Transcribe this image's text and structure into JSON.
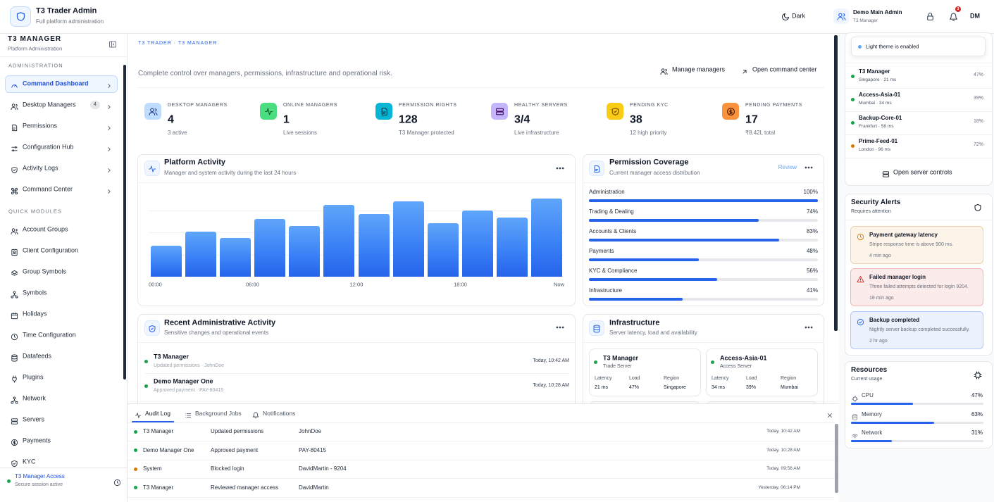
{
  "header": {
    "title": "T3 Trader Admin",
    "subtitle": "Full platform administration",
    "theme_toggle": "Dark",
    "user_name": "Demo Main Admin",
    "user_role": "T3 Manager",
    "notification_count": 3,
    "avatar": "DM"
  },
  "sidebar": {
    "title": "T3 MANAGER",
    "subtitle": "Platform Administration",
    "sections": [
      {
        "heading": "ADMINISTRATION",
        "items": [
          {
            "label": "Command Dashboard",
            "active": true,
            "chevron": true
          },
          {
            "label": "Desktop Managers",
            "badge": 4,
            "chevron": true
          },
          {
            "label": "Permissions",
            "chevron": true
          },
          {
            "label": "Configuration Hub",
            "chevron": true
          },
          {
            "label": "Activity Logs",
            "chevron": true
          },
          {
            "label": "Command Center",
            "chevron": true
          }
        ]
      },
      {
        "heading": "QUICK MODULES",
        "items": [
          {
            "label": "Account Groups"
          },
          {
            "label": "Client Configuration"
          },
          {
            "label": "Group Symbols"
          },
          {
            "label": "Symbols"
          },
          {
            "label": "Holidays"
          },
          {
            "label": "Time Configuration"
          },
          {
            "label": "Datafeeds"
          },
          {
            "label": "Plugins"
          },
          {
            "label": "Network"
          },
          {
            "label": "Servers"
          },
          {
            "label": "Payments"
          },
          {
            "label": "KYC"
          }
        ]
      }
    ],
    "footer": {
      "title": "T3 Manager Access",
      "subtitle": "Secure session active"
    }
  },
  "main": {
    "breadcrumb": "T3 TRADER · T3 MANAGER",
    "description": "Complete control over managers, permissions, infrastructure and operational risk.",
    "actions": [
      "Manage managers",
      "Open command center"
    ],
    "stats": [
      {
        "label": "DESKTOP MANAGERS",
        "value": 4,
        "note": "3 active"
      },
      {
        "label": "ONLINE MANAGERS",
        "value": 1,
        "note": "Live sessions"
      },
      {
        "label": "PERMISSION RIGHTS",
        "value": 128,
        "note": "T3 Manager protected"
      },
      {
        "label": "HEALTHY SERVERS",
        "value": "3/4",
        "note": "Live infrastructure"
      },
      {
        "label": "PENDING KYC",
        "value": 38,
        "note": "12 high priority"
      },
      {
        "label": "PENDING PAYMENTS",
        "value": 17,
        "note": "₹8.42L total"
      }
    ],
    "activity_chart": {
      "type": "bar",
      "title": "Platform Activity",
      "subtitle": "Manager and system activity during the last 24 hours",
      "values": [
        35,
        51,
        44,
        65,
        57,
        81,
        71,
        85,
        60,
        75,
        67,
        88
      ],
      "ylim": [
        0,
        100
      ],
      "grid_lines": [
        25,
        50,
        75
      ],
      "color": "#3b82f6",
      "x_labels": [
        "00:00",
        "06:00",
        "12:00",
        "18:00",
        "Now"
      ]
    },
    "permission_coverage": {
      "title": "Permission Coverage",
      "subtitle": "Current manager access distribution",
      "action": "Review",
      "items": [
        {
          "name": "Administration",
          "percent": 100,
          "label": "100%"
        },
        {
          "name": "Trading & Dealing",
          "percent": 74,
          "label": "74%"
        },
        {
          "name": "Accounts & Clients",
          "percent": 83,
          "label": "83%"
        },
        {
          "name": "Payments",
          "percent": 48,
          "label": "48%"
        },
        {
          "name": "KYC & Compliance",
          "percent": 56,
          "label": "56%"
        },
        {
          "name": "Infrastructure",
          "percent": 41,
          "label": "41%"
        }
      ]
    },
    "recent_activity": {
      "title": "Recent Administrative Activity",
      "subtitle": "Sensitive changes and operational events",
      "items": [
        {
          "actor": "T3 Manager",
          "detail": "Updated permissions · JohnDoe",
          "time": "Today, 10:42 AM"
        },
        {
          "actor": "Demo Manager One",
          "detail": "Approved payment · PAY-80415",
          "time": "Today, 10:28 AM"
        }
      ]
    },
    "infrastructure": {
      "title": "Infrastructure",
      "subtitle": "Server latency, load and availability",
      "columns": [
        "Latency",
        "Load",
        "Region"
      ],
      "servers": [
        {
          "name": "T3 Manager",
          "type": "Trade Server",
          "values": [
            "21 ms",
            "47%",
            "Singapore"
          ]
        },
        {
          "name": "Access-Asia-01",
          "type": "Access Server",
          "values": [
            "34 ms",
            "39%",
            "Mumbai"
          ]
        }
      ]
    }
  },
  "drawer": {
    "tabs": [
      "Audit Log",
      "Background Jobs",
      "Notifications"
    ],
    "rows": [
      {
        "color": "#16a34a",
        "cells": [
          "T3 Manager",
          "Updated permissions",
          "JohnDoe",
          "Today, 10:42 AM"
        ]
      },
      {
        "color": "#16a34a",
        "cells": [
          "Demo Manager One",
          "Approved payment",
          "PAY-80415",
          "Today, 10:28 AM"
        ]
      },
      {
        "color": "#d97706",
        "cells": [
          "System",
          "Blocked login",
          "DavidMartin - 9204",
          "Today, 09:56 AM"
        ]
      },
      {
        "color": "#16a34a",
        "cells": [
          "T3 Manager",
          "Reviewed manager access",
          "DavidMartin",
          "Yesterday, 06:14 PM"
        ]
      }
    ]
  },
  "right_panel": {
    "toast": "Light theme is enabled",
    "servers": [
      {
        "name": "T3 Manager",
        "detail": "Singapore · 21 ms",
        "load": "47%",
        "color": "#16a34a"
      },
      {
        "name": "Access-Asia-01",
        "detail": "Mumbai · 34 ms",
        "load": "39%",
        "color": "#16a34a"
      },
      {
        "name": "Backup-Core-01",
        "detail": "Frankfurt · 58 ms",
        "load": "18%",
        "color": "#16a34a"
      },
      {
        "name": "Prime-Feed-01",
        "detail": "London · 96 ms",
        "load": "72%",
        "color": "#d97706"
      }
    ],
    "server_action": "Open server controls",
    "alerts": {
      "title": "Security Alerts",
      "subtitle": "Requires attention",
      "items": [
        {
          "title": "Payment gateway latency",
          "text": "Stripe response time is above 900 ms.",
          "time": "4 min ago",
          "color": "#d97706"
        },
        {
          "title": "Failed manager login",
          "text": "Three failed attempts detected for login 9204.",
          "time": "18 min ago",
          "color": "#dc2626"
        },
        {
          "title": "Backup completed",
          "text": "Nightly server backup completed successfully.",
          "time": "2 hr ago",
          "color": "#2563eb"
        }
      ]
    },
    "resources": {
      "title": "Resources",
      "subtitle": "Current usage",
      "items": [
        {
          "name": "CPU",
          "percent": 47,
          "label": "47%"
        },
        {
          "name": "Memory",
          "percent": 63,
          "label": "63%"
        },
        {
          "name": "Network",
          "percent": 31,
          "label": "31%"
        }
      ]
    }
  }
}
